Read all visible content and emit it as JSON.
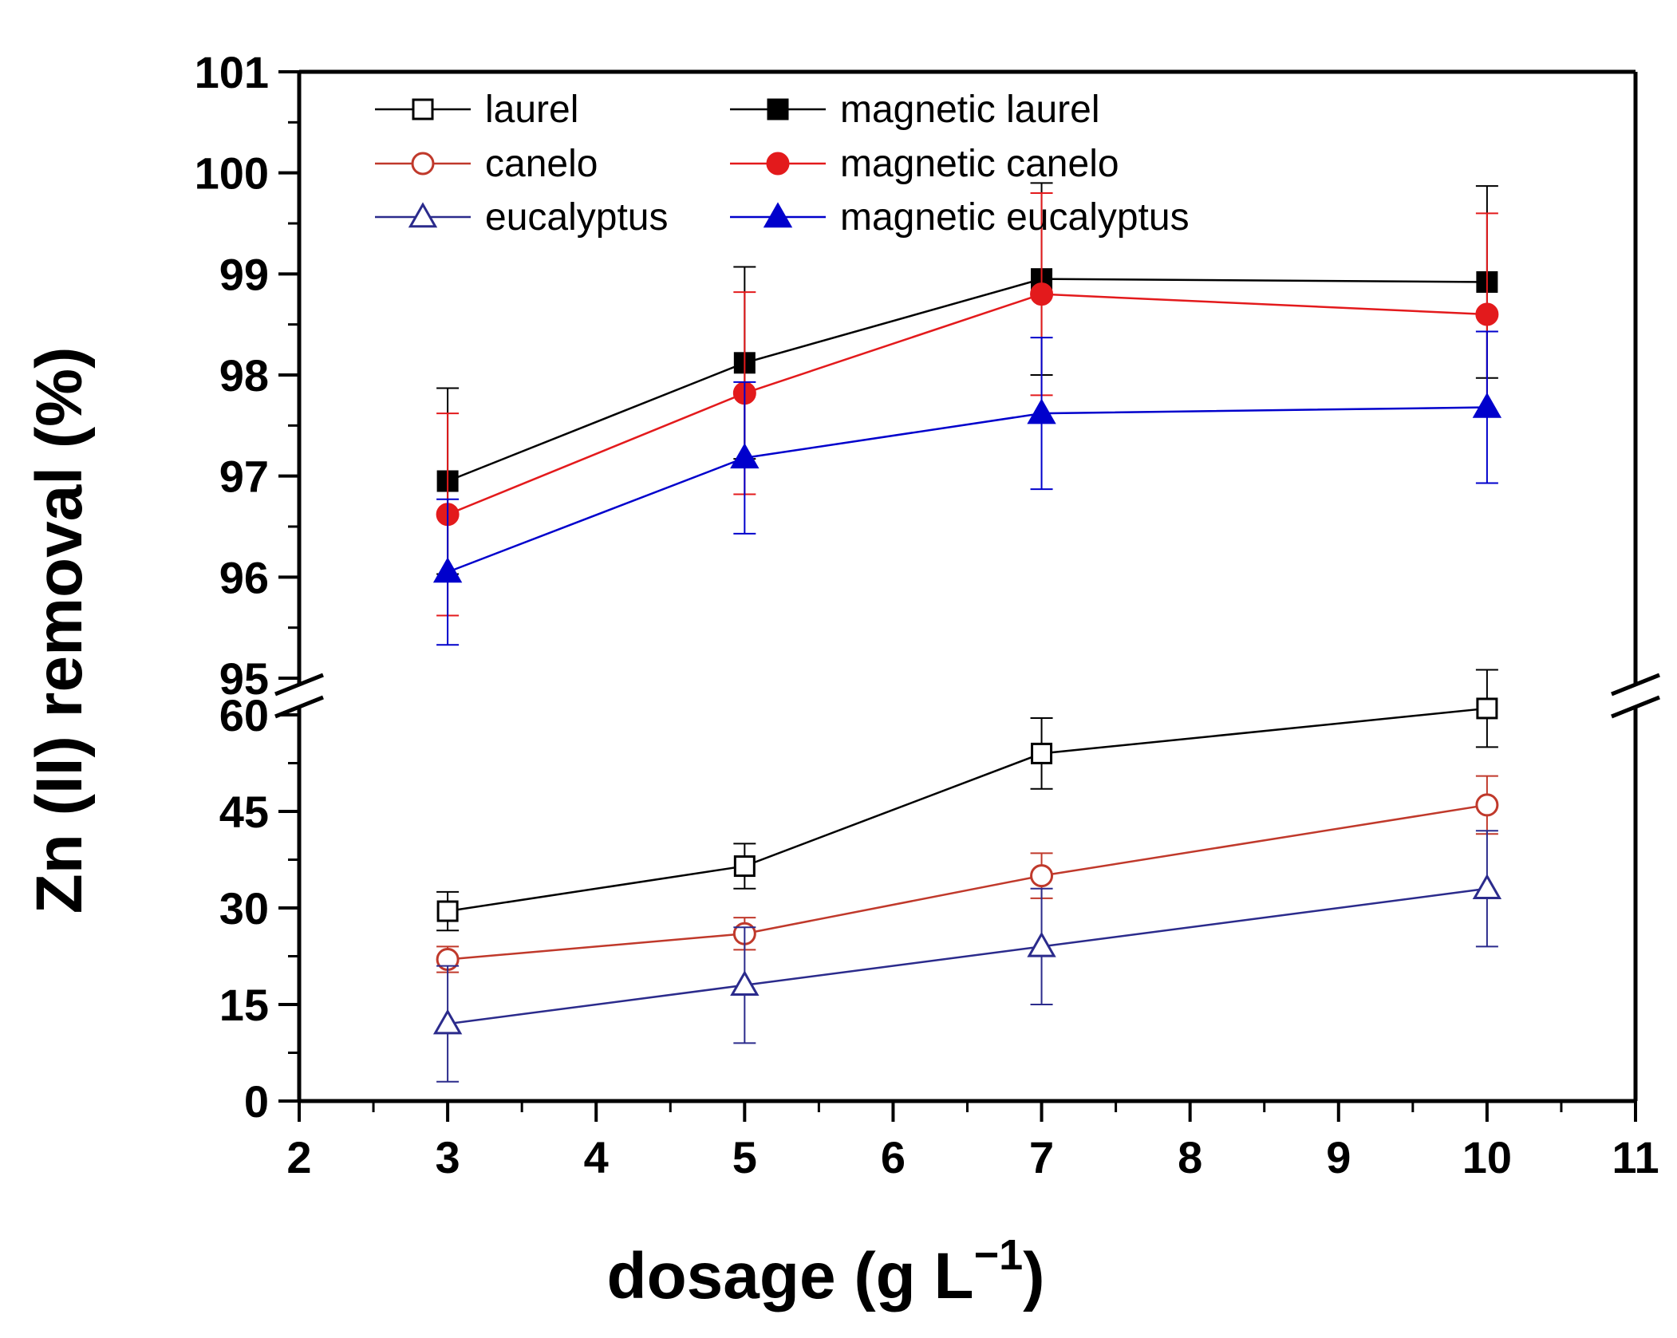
{
  "chart_data": {
    "type": "line",
    "xlabel": "dosage (g L",
    "xlabel_sup": "−1",
    "xlabel_end": ")",
    "ylabel": "Zn (II) removal (%)",
    "xlim": [
      2,
      11
    ],
    "x_ticks": [
      "2",
      "3",
      "4",
      "5",
      "6",
      "7",
      "8",
      "9",
      "10",
      "11"
    ],
    "y_axis_break": {
      "lower_range": [
        0,
        60
      ],
      "upper_range": [
        95,
        101
      ],
      "lower_ticks": [
        "0",
        "15",
        "30",
        "45",
        "60"
      ],
      "upper_ticks": [
        "95",
        "96",
        "97",
        "98",
        "99",
        "100",
        "101"
      ]
    },
    "legend_position": "top-left",
    "series": [
      {
        "name": "laurel",
        "color": "#000000",
        "marker": "open-square",
        "x": [
          3,
          5,
          7,
          10
        ],
        "y": [
          29.5,
          36.5,
          54,
          61
        ],
        "err": [
          3,
          3.5,
          5.5,
          6
        ]
      },
      {
        "name": "magnetic laurel",
        "color": "#000000",
        "marker": "filled-square",
        "x": [
          3,
          5,
          7,
          10
        ],
        "y": [
          96.95,
          98.12,
          98.95,
          98.92
        ],
        "err": [
          0.92,
          0.95,
          0.95,
          0.95
        ]
      },
      {
        "name": "canelo",
        "color": "#c0392b",
        "marker": "open-circle",
        "x": [
          3,
          5,
          7,
          10
        ],
        "y": [
          22,
          26,
          35,
          46
        ],
        "err": [
          2,
          2.5,
          3.5,
          4.5
        ]
      },
      {
        "name": "magnetic canelo",
        "color": "#e31a1c",
        "marker": "filled-circle",
        "x": [
          3,
          5,
          7,
          10
        ],
        "y": [
          96.62,
          97.82,
          98.8,
          98.6
        ],
        "err": [
          1,
          1,
          1,
          1
        ]
      },
      {
        "name": "eucalyptus",
        "color": "#2b2b8c",
        "marker": "open-triangle",
        "x": [
          3,
          5,
          7,
          10
        ],
        "y": [
          12,
          18,
          24,
          33
        ],
        "err": [
          9,
          9,
          9,
          9
        ]
      },
      {
        "name": "magnetic eucalyptus",
        "color": "#0000cc",
        "marker": "filled-triangle",
        "x": [
          3,
          5,
          7,
          10
        ],
        "y": [
          96.05,
          97.18,
          97.62,
          97.68
        ],
        "err": [
          0.72,
          0.75,
          0.75,
          0.75
        ]
      }
    ]
  }
}
